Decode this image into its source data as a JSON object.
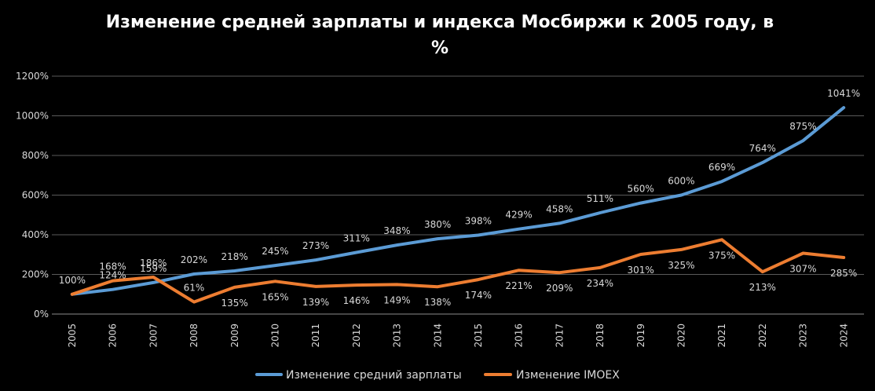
{
  "chart_data": {
    "type": "line",
    "title": "Изменение средней зарплаты и индекса Мосбиржи к 2005 году, в %",
    "categories": [
      "2005",
      "2006",
      "2007",
      "2008",
      "2009",
      "2010",
      "2011",
      "2012",
      "2013",
      "2014",
      "2015",
      "2016",
      "2017",
      "2018",
      "2019",
      "2020",
      "2021",
      "2022",
      "2023",
      "2024"
    ],
    "series": [
      {
        "name": "Изменение средний зарплаты",
        "color": "#5b9bd5",
        "values": [
          100,
          124,
          159,
          202,
          218,
          245,
          273,
          311,
          348,
          380,
          398,
          429,
          458,
          511,
          560,
          600,
          669,
          764,
          875,
          1041
        ],
        "labels": [
          "100%",
          "124%",
          "159%",
          "202%",
          "218%",
          "245%",
          "273%",
          "311%",
          "348%",
          "380%",
          "398%",
          "429%",
          "458%",
          "511%",
          "560%",
          "600%",
          "669%",
          "764%",
          "875%",
          "1041%"
        ]
      },
      {
        "name": "Изменение IMOEX",
        "color": "#ed7d31",
        "values": [
          100,
          168,
          186,
          61,
          135,
          165,
          139,
          146,
          149,
          138,
          174,
          221,
          209,
          234,
          301,
          325,
          375,
          213,
          307,
          285
        ],
        "labels": [
          "",
          "168%",
          "186%",
          "61%",
          "135%",
          "165%",
          "139%",
          "146%",
          "149%",
          "138%",
          "174%",
          "221%",
          "209%",
          "234%",
          "301%",
          "325%",
          "375%",
          "213%",
          "307%",
          "285%"
        ]
      }
    ],
    "y_ticks": [
      "0%",
      "200%",
      "400%",
      "600%",
      "800%",
      "1000%",
      "1200%"
    ],
    "ylim": [
      0,
      1200
    ],
    "grid": true,
    "legend_position": "bottom"
  }
}
